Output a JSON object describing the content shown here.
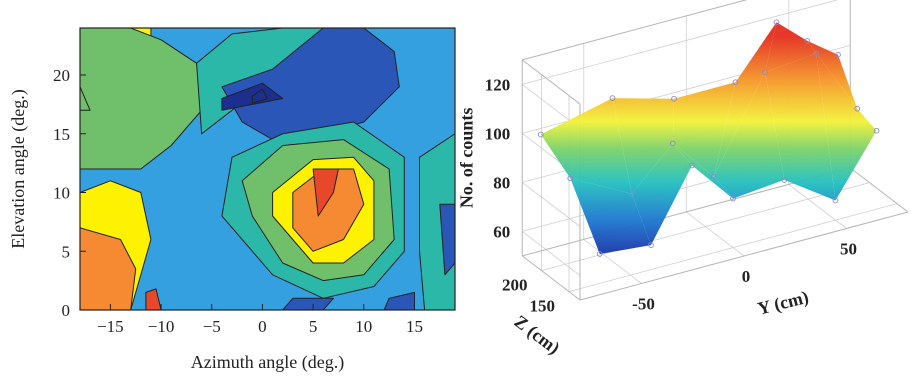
{
  "chart_data": [
    {
      "type": "heatmap",
      "subtype": "filled-contour",
      "xlabel": "Azimuth angle (deg.)",
      "ylabel": "Elevation angle (deg.)",
      "xlim": [
        -18,
        19
      ],
      "ylim": [
        0,
        24
      ],
      "xticks": [
        -15,
        -10,
        -5,
        0,
        5,
        10,
        15
      ],
      "yticks": [
        0,
        5,
        10,
        15,
        20
      ],
      "xtick_labels": [
        "−15",
        "−10",
        "−5",
        "0",
        "5",
        "10",
        "15"
      ],
      "ytick_labels": [
        "0",
        "5",
        "10",
        "15",
        "20"
      ],
      "grid": false,
      "legend": "none",
      "levels_palette": [
        "#1c2f8f",
        "#2a56b8",
        "#34a0e0",
        "#2cb8a8",
        "#6fbf6b",
        "#fff200",
        "#f58a32",
        "#e8482a"
      ],
      "regions": [
        {
          "level": 5,
          "x": [
            -18,
            -16,
            -13,
            -11,
            -11,
            -18
          ],
          "y": [
            24,
            24,
            23,
            22,
            24,
            24
          ]
        },
        {
          "level": 5,
          "x": [
            -18,
            -15,
            -12,
            -11,
            -13,
            -18
          ],
          "y": [
            10,
            11,
            10,
            6,
            0,
            0
          ]
        },
        {
          "level": 6,
          "x": [
            -18,
            -14,
            -12.5,
            -13,
            -18
          ],
          "y": [
            7,
            6,
            3.5,
            0,
            0
          ]
        },
        {
          "level": 7,
          "x": [
            -11.5,
            -10.5,
            -10,
            -11.5
          ],
          "y": [
            1.5,
            1.8,
            0,
            0
          ]
        },
        {
          "level": 4,
          "x": [
            -18,
            -13,
            -10,
            -6.5,
            -6,
            -9,
            -12,
            -18
          ],
          "y": [
            24,
            24,
            23,
            21,
            17,
            14,
            12,
            12
          ]
        },
        {
          "level": 4,
          "x": [
            -18,
            -17,
            -18
          ],
          "y": [
            19,
            17,
            17
          ]
        },
        {
          "level": 3,
          "x": [
            -6.5,
            -3,
            2,
            6,
            9,
            7,
            1,
            -3,
            -6
          ],
          "y": [
            21,
            23.5,
            24,
            24,
            22,
            19,
            20,
            17,
            15
          ]
        },
        {
          "level": 1,
          "x": [
            -4,
            1,
            6,
            10,
            13,
            13.5,
            10,
            6,
            2,
            -2
          ],
          "y": [
            19,
            20.5,
            24,
            24,
            22,
            19,
            16,
            15,
            14,
            16
          ]
        },
        {
          "level": 0,
          "x": [
            -4,
            0,
            2,
            -4
          ],
          "y": [
            18,
            19.3,
            18,
            17
          ]
        },
        {
          "level": 0,
          "x": [
            -1,
            0,
            0.5,
            -1
          ],
          "y": [
            18.2,
            18.8,
            18,
            17.6
          ]
        },
        {
          "level": 3,
          "x": [
            -3,
            2,
            9,
            14,
            14,
            11,
            6,
            1,
            -4
          ],
          "y": [
            13,
            15,
            16,
            13,
            5,
            2,
            1,
            3,
            8
          ]
        },
        {
          "level": 4,
          "x": [
            -2,
            2,
            8,
            12.5,
            13,
            10,
            6,
            2,
            -1
          ],
          "y": [
            11,
            14,
            14.5,
            12,
            6,
            3,
            2.5,
            4,
            8
          ]
        },
        {
          "level": 5,
          "x": [
            1,
            5,
            9,
            11,
            11,
            8,
            5,
            3,
            1
          ],
          "y": [
            10,
            12.8,
            13,
            11,
            6,
            4,
            4,
            6,
            8
          ]
        },
        {
          "level": 6,
          "x": [
            3,
            6,
            9,
            10,
            8,
            5,
            3
          ],
          "y": [
            10,
            12,
            12,
            9,
            6,
            5,
            7
          ]
        },
        {
          "level": 7,
          "x": [
            5,
            7.5,
            7,
            5.5
          ],
          "y": [
            12,
            12,
            10,
            8
          ]
        },
        {
          "level": 3,
          "x": [
            15.5,
            19,
            19,
            16,
            15.5
          ],
          "y": [
            13,
            15,
            0,
            0,
            5
          ]
        },
        {
          "level": 1,
          "x": [
            17.5,
            19,
            19,
            18
          ],
          "y": [
            9,
            9,
            4,
            3
          ]
        },
        {
          "level": 1,
          "x": [
            2,
            6,
            7,
            3
          ],
          "y": [
            0,
            0,
            1,
            1
          ]
        },
        {
          "level": 1,
          "x": [
            12,
            15,
            15,
            12.5
          ],
          "y": [
            0,
            0,
            1.5,
            1
          ]
        }
      ]
    },
    {
      "type": "surface",
      "zlabel": "No. of counts",
      "xlabel": "Y (cm)",
      "ylabel": "Z (cm)",
      "z_ticks": [
        60,
        80,
        100,
        120
      ],
      "y_axis_ticks": [
        -50,
        0,
        50
      ],
      "z_axis_ticks": [
        150,
        200
      ],
      "y_axis_tick_labels": [
        "-50",
        "0",
        "50"
      ],
      "z_axis_tick_labels": [
        "150",
        "200"
      ],
      "z_tick_labels": [
        "60",
        "80",
        "100",
        "120"
      ],
      "colormap": "jet",
      "points": [
        {
          "Y": -75,
          "Z": 220,
          "counts": 101
        },
        {
          "Y": -40,
          "Z": 220,
          "counts": 108
        },
        {
          "Y": -10,
          "Z": 220,
          "counts": 101
        },
        {
          "Y": 20,
          "Z": 220,
          "counts": 101
        },
        {
          "Y": 40,
          "Z": 220,
          "counts": 121
        },
        {
          "Y": 55,
          "Z": 220,
          "counts": 110
        },
        {
          "Y": 70,
          "Z": 220,
          "counts": 101
        },
        {
          "Y": -70,
          "Z": 185,
          "counts": 88
        },
        {
          "Y": -40,
          "Z": 185,
          "counts": 75
        },
        {
          "Y": -20,
          "Z": 185,
          "counts": 91
        },
        {
          "Y": 0,
          "Z": 185,
          "counts": 73
        },
        {
          "Y": 25,
          "Z": 185,
          "counts": 110
        },
        {
          "Y": 50,
          "Z": 185,
          "counts": 112
        },
        {
          "Y": 70,
          "Z": 185,
          "counts": 85
        },
        {
          "Y": -65,
          "Z": 150,
          "counts": 62
        },
        {
          "Y": -40,
          "Z": 150,
          "counts": 60
        },
        {
          "Y": -20,
          "Z": 150,
          "counts": 88
        },
        {
          "Y": 0,
          "Z": 150,
          "counts": 70
        },
        {
          "Y": 25,
          "Z": 150,
          "counts": 72
        },
        {
          "Y": 50,
          "Z": 150,
          "counts": 58
        },
        {
          "Y": 70,
          "Z": 150,
          "counts": 82
        }
      ]
    }
  ]
}
